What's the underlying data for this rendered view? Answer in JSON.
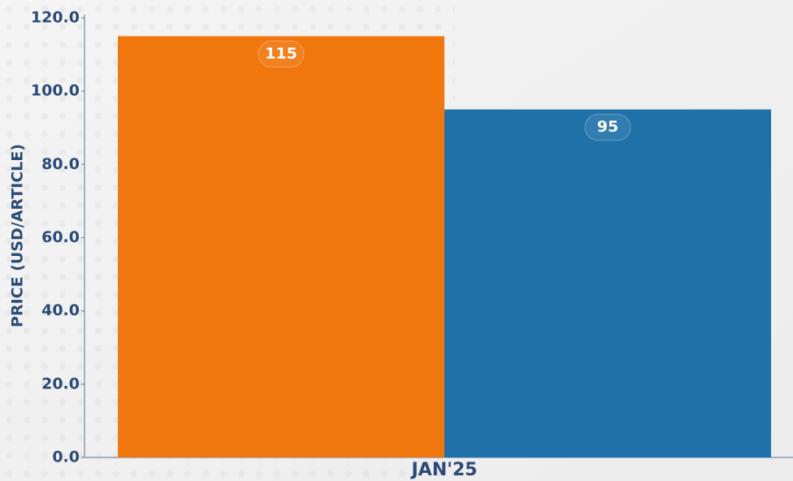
{
  "chart_data": {
    "type": "bar",
    "categories": [
      "JAN'25"
    ],
    "series": [
      {
        "color": "#f0760e",
        "values": [
          115
        ]
      },
      {
        "color": "#2071aa",
        "values": [
          95
        ]
      }
    ],
    "ylabel": "PRICE (USD/ARTICLE)",
    "ylim": [
      0,
      120
    ],
    "yticks": [
      {
        "value": 0,
        "label": "0.0"
      },
      {
        "value": 20,
        "label": "20.0"
      },
      {
        "value": 40,
        "label": "40.0"
      },
      {
        "value": 60,
        "label": "60.0"
      },
      {
        "value": 80,
        "label": "80.0"
      },
      {
        "value": 100,
        "label": "100.0"
      },
      {
        "value": 120,
        "label": "120.0"
      }
    ],
    "grid": false
  }
}
